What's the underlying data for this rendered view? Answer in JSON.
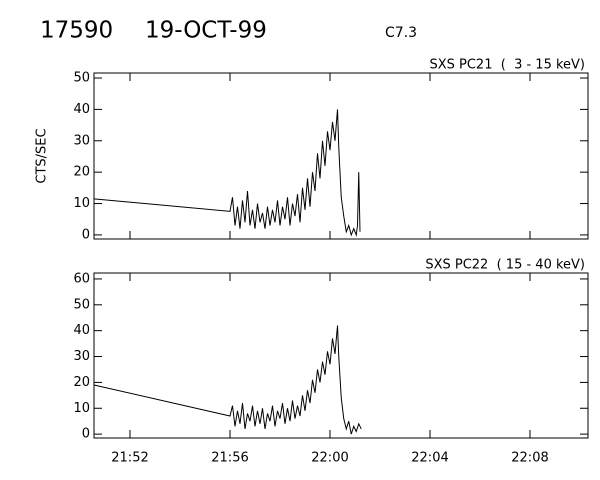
{
  "header": {
    "id": "17590",
    "date": "19-OCT-99",
    "class": "C7.3"
  },
  "chart_data": [
    {
      "type": "line",
      "title": "SXS PC21  (  3 - 15 keV)",
      "y_label": "CTS/SEC",
      "color": "#000000",
      "x": [
        1310.56,
        1316.0,
        1316.1,
        1316.2,
        1316.3,
        1316.4,
        1316.5,
        1316.6,
        1316.7,
        1316.8,
        1316.9,
        1317.0,
        1317.1,
        1317.2,
        1317.3,
        1317.4,
        1317.5,
        1317.6,
        1317.7,
        1317.8,
        1317.9,
        1318.0,
        1318.1,
        1318.2,
        1318.3,
        1318.4,
        1318.5,
        1318.6,
        1318.7,
        1318.8,
        1318.9,
        1319.0,
        1319.1,
        1319.2,
        1319.3,
        1319.4,
        1319.5,
        1319.6,
        1319.7,
        1319.8,
        1319.9,
        1320.0,
        1320.1,
        1320.2,
        1320.3,
        1320.35,
        1320.45,
        1320.55,
        1320.65,
        1320.75,
        1320.85,
        1320.95,
        1321.05,
        1321.1,
        1321.15,
        1321.2
      ],
      "values": [
        11.5,
        7.5,
        12,
        3,
        9,
        2,
        11,
        4,
        14,
        3,
        8,
        2,
        10,
        4,
        7,
        2,
        9,
        3,
        8,
        4,
        11,
        3,
        9,
        5,
        12,
        3,
        10,
        6,
        13,
        4,
        15,
        8,
        18,
        9,
        20,
        14,
        26,
        18,
        30,
        22,
        33,
        27,
        36,
        30,
        40,
        28,
        12,
        6,
        1,
        3,
        0,
        2,
        0,
        3,
        20,
        1
      ],
      "xlim": [
        1310.56,
        1330.32
      ],
      "ylim": [
        -1.3,
        51.6
      ],
      "xticks": [
        1312,
        1316,
        1320,
        1324,
        1328
      ],
      "yticks": [
        0,
        10,
        20,
        30,
        40,
        50
      ]
    },
    {
      "type": "line",
      "title": "SXS PC22  ( 15 - 40 keV)",
      "color": "#000000",
      "x": [
        1310.56,
        1316.0,
        1316.1,
        1316.2,
        1316.3,
        1316.4,
        1316.5,
        1316.6,
        1316.7,
        1316.8,
        1316.9,
        1317.0,
        1317.1,
        1317.2,
        1317.3,
        1317.4,
        1317.5,
        1317.6,
        1317.7,
        1317.8,
        1317.9,
        1318.0,
        1318.1,
        1318.2,
        1318.3,
        1318.4,
        1318.5,
        1318.6,
        1318.7,
        1318.8,
        1318.9,
        1319.0,
        1319.1,
        1319.2,
        1319.3,
        1319.4,
        1319.5,
        1319.6,
        1319.7,
        1319.8,
        1319.9,
        1320.0,
        1320.1,
        1320.2,
        1320.3,
        1320.35,
        1320.45,
        1320.55,
        1320.65,
        1320.75,
        1320.85,
        1320.95,
        1321.05,
        1321.15,
        1321.25
      ],
      "values": [
        19,
        7,
        11,
        3,
        9,
        4,
        12,
        2,
        8,
        5,
        11,
        3,
        9,
        4,
        10,
        2,
        8,
        5,
        11,
        3,
        9,
        6,
        12,
        4,
        10,
        5,
        13,
        6,
        11,
        7,
        15,
        9,
        17,
        12,
        21,
        16,
        25,
        20,
        28,
        23,
        32,
        27,
        37,
        31,
        42,
        30,
        14,
        6,
        2,
        5,
        0,
        3,
        1,
        4,
        2
      ],
      "xlim": [
        1310.56,
        1330.32
      ],
      "ylim": [
        -1.5,
        62.3
      ],
      "xticks": [
        {
          "value": 1312,
          "label": "21:52"
        },
        {
          "value": 1316,
          "label": "21:56"
        },
        {
          "value": 1320,
          "label": "22:00"
        },
        {
          "value": 1324,
          "label": "22:04"
        },
        {
          "value": 1328,
          "label": "22:08"
        }
      ],
      "yticks": [
        0,
        10,
        20,
        30,
        40,
        50,
        60
      ]
    }
  ]
}
